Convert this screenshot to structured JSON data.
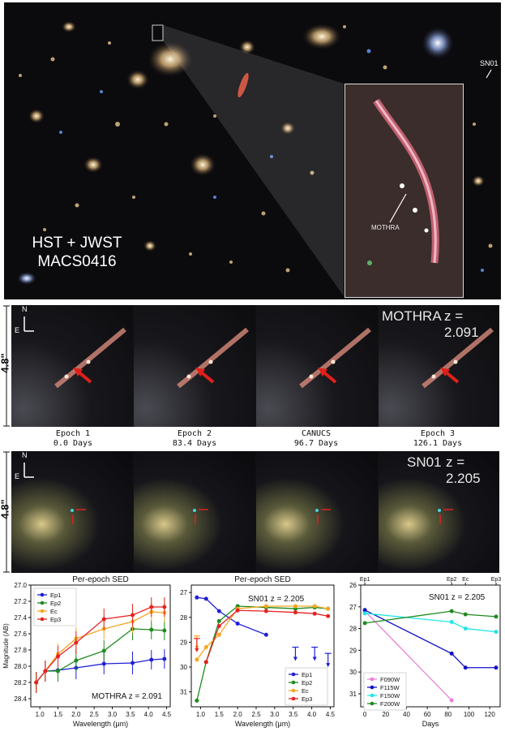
{
  "image_panel": {
    "label_line1": "HST + JWST",
    "label_line2": "MACS0416",
    "sn_tag": "SN01",
    "inset_tag": "MOTHRA"
  },
  "mothra_strip": {
    "title": "MOTHRA",
    "redshift": "z = 2.091",
    "scale": "4.8\"",
    "compass_n": "N",
    "compass_e": "E",
    "epochs": [
      {
        "name": "Epoch 1",
        "days": "0.0 Days"
      },
      {
        "name": "Epoch 2",
        "days": "83.4 Days"
      },
      {
        "name": "CANUCS",
        "days": "96.7 Days"
      },
      {
        "name": "Epoch 3",
        "days": "126.1 Days"
      }
    ]
  },
  "sn01_strip": {
    "title": "SN01",
    "redshift": "z = 2.205",
    "scale": "4.8\"",
    "compass_n": "N",
    "compass_e": "E"
  },
  "colors": {
    "Ep1": "#1f1fd6",
    "Ep2": "#1e8a1e",
    "Ec": "#f5a623",
    "Ep3": "#e62222",
    "F090W": "#e87fd8",
    "F115W": "#1010c8",
    "F150W": "#22e6e6",
    "F200W": "#1e8a1e"
  },
  "chart_data": [
    {
      "type": "line",
      "title": "Per-epoch SED",
      "xlabel": "Wavelength (μm)",
      "ylabel": "Magnitude (AB)",
      "xlim": [
        0.75,
        4.6
      ],
      "ylim": [
        28.5,
        27.0
      ],
      "y_inverted": true,
      "xticks": [
        "1.0",
        "1.5",
        "2.0",
        "2.5",
        "3.0",
        "3.5",
        "4.0",
        "4.5"
      ],
      "yticks": [
        "27.0",
        "27.2",
        "27.4",
        "27.6",
        "27.8",
        "28.0",
        "28.2",
        "28.4"
      ],
      "annotation": "MOTHRA  z = 2.091",
      "legend_position": "top-left",
      "x": [
        0.9,
        1.15,
        1.5,
        2.0,
        2.77,
        3.56,
        4.08,
        4.44
      ],
      "series": [
        {
          "name": "Ep1",
          "values": [
            28.2,
            28.06,
            28.05,
            28.02,
            27.97,
            27.96,
            27.92,
            27.91
          ],
          "err": [
            0.13,
            0.13,
            0.13,
            0.14,
            0.13,
            0.14,
            0.12,
            0.12
          ]
        },
        {
          "name": "Ep2",
          "values": [
            28.2,
            28.06,
            28.06,
            27.93,
            27.81,
            27.54,
            27.55,
            27.56
          ],
          "err": [
            0.13,
            0.13,
            0.13,
            0.14,
            0.13,
            0.14,
            0.12,
            0.12
          ]
        },
        {
          "name": "Ec",
          "values": [
            28.2,
            28.06,
            27.85,
            27.66,
            27.54,
            27.45,
            27.33,
            27.34
          ],
          "err": [
            0.13,
            0.13,
            0.13,
            0.14,
            0.13,
            0.14,
            0.12,
            0.12
          ]
        },
        {
          "name": "Ep3",
          "values": [
            28.2,
            28.06,
            27.88,
            27.71,
            27.42,
            27.37,
            27.27,
            27.27
          ],
          "err": [
            0.13,
            0.13,
            0.13,
            0.14,
            0.13,
            0.14,
            0.12,
            0.12
          ]
        }
      ]
    },
    {
      "type": "line",
      "title": "Per-epoch SED",
      "xlabel": "Wavelength (μm)",
      "ylabel": "",
      "xlim": [
        0.75,
        4.6
      ],
      "ylim": [
        31.6,
        26.7
      ],
      "y_inverted": true,
      "xticks": [
        "1.0",
        "1.5",
        "2.0",
        "2.5",
        "3.0",
        "3.5",
        "4.0",
        "4.5"
      ],
      "yticks": [
        "27",
        "28",
        "29",
        "30",
        "31"
      ],
      "annotation": "SN01   z = 2.205",
      "legend_position": "lower-right",
      "series": [
        {
          "name": "Ep1",
          "x": [
            0.9,
            1.15,
            1.5,
            2.0,
            2.77
          ],
          "values": [
            27.2,
            27.25,
            27.75,
            28.25,
            28.7
          ]
        },
        {
          "name": "Ep2",
          "x": [
            0.9,
            1.15,
            1.5,
            2.0,
            2.77,
            3.56,
            4.08,
            4.44
          ],
          "values": [
            31.35,
            29.8,
            28.15,
            27.55,
            27.6,
            27.65,
            27.6,
            27.65
          ]
        },
        {
          "name": "Ec",
          "x": [
            0.9,
            1.15,
            1.5,
            2.0,
            2.77,
            3.56,
            4.08,
            4.44
          ],
          "values": [
            29.7,
            29.2,
            28.7,
            27.65,
            27.55,
            27.55,
            27.55,
            27.65
          ]
        },
        {
          "name": "Ep3",
          "x": [
            1.15,
            1.5,
            2.0,
            2.77,
            3.56,
            4.08,
            4.44
          ],
          "values": [
            29.8,
            28.35,
            27.72,
            27.75,
            27.8,
            27.85,
            27.95
          ]
        }
      ],
      "upper_limits": [
        {
          "series": "Ec",
          "x": 0.9,
          "value": 28.75
        },
        {
          "series": "Ep3",
          "x": 0.9,
          "value": 28.85
        },
        {
          "series": "Ep1",
          "x": 3.56,
          "value": 29.2
        },
        {
          "series": "Ep1",
          "x": 4.08,
          "value": 29.2
        },
        {
          "series": "Ep1",
          "x": 4.44,
          "value": 29.45
        }
      ]
    },
    {
      "type": "line",
      "title": "",
      "xlabel": "Days",
      "ylabel": "",
      "xlim": [
        -4,
        130
      ],
      "ylim": [
        31.6,
        26.0
      ],
      "y_inverted": true,
      "xticks": [
        "0",
        "20",
        "40",
        "60",
        "80",
        "100",
        "120"
      ],
      "yticks": [
        "26",
        "27",
        "28",
        "29",
        "30",
        "31"
      ],
      "top_ticks": [
        {
          "x": 0,
          "label": "Ep1"
        },
        {
          "x": 83.4,
          "label": "Ep2"
        },
        {
          "x": 96.7,
          "label": "Ec"
        },
        {
          "x": 126.1,
          "label": "Ep3"
        }
      ],
      "annotation": "SN01   z = 2.205",
      "legend_position": "lower-left",
      "x": [
        0,
        83.4,
        96.7,
        126.1
      ],
      "series": [
        {
          "name": "F090W",
          "x": [
            0,
            83.4
          ],
          "values": [
            27.2,
            31.3
          ]
        },
        {
          "name": "F115W",
          "x": [
            0,
            83.4,
            96.7,
            126.1
          ],
          "values": [
            27.15,
            29.15,
            29.8,
            29.8
          ]
        },
        {
          "name": "F150W",
          "x": [
            0,
            83.4,
            96.7,
            126.1
          ],
          "values": [
            27.3,
            27.7,
            28.0,
            28.15
          ]
        },
        {
          "name": "F200W",
          "x": [
            0,
            83.4,
            96.7,
            126.1
          ],
          "values": [
            27.75,
            27.2,
            27.35,
            27.45
          ]
        }
      ]
    }
  ]
}
